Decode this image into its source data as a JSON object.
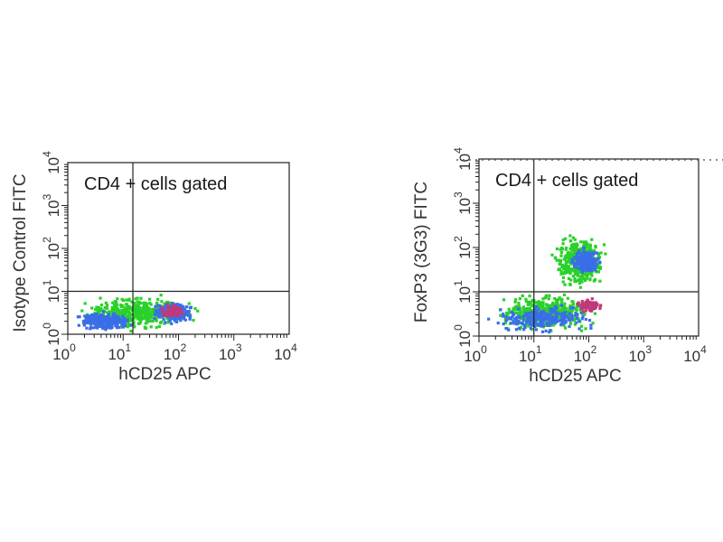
{
  "chart_data": [
    {
      "type": "scatter",
      "annotation": "CD4 + cells gated",
      "xlabel": "hCD25 APC",
      "ylabel": "Isotype Control FITC",
      "xscale": "log",
      "yscale": "log",
      "xlim": [
        1,
        10000
      ],
      "ylim": [
        1,
        10000
      ],
      "x_ticks": [
        {
          "base": "10",
          "exp": "0"
        },
        {
          "base": "10",
          "exp": "1"
        },
        {
          "base": "10",
          "exp": "2"
        },
        {
          "base": "10",
          "exp": "3"
        },
        {
          "base": "10",
          "exp": "4"
        }
      ],
      "y_ticks": [
        {
          "base": "10",
          "exp": "0"
        },
        {
          "base": "10",
          "exp": "1"
        },
        {
          "base": "10",
          "exp": "2"
        },
        {
          "base": "10",
          "exp": "3"
        },
        {
          "base": "10",
          "exp": "4"
        }
      ],
      "quadrant_gate": {
        "x": 15,
        "y": 10
      },
      "populations": [
        {
          "density": "low",
          "color": "#2bd12b",
          "x_range": [
            1,
            350
          ],
          "y_range": [
            1,
            10
          ]
        },
        {
          "density": "medium",
          "color": "#3a6ee8",
          "x_range": [
            1,
            20
          ],
          "y_range": [
            1,
            4
          ]
        },
        {
          "density": "medium",
          "color": "#3a6ee8",
          "x_range": [
            25,
            250
          ],
          "y_range": [
            1.5,
            7
          ]
        },
        {
          "density": "high",
          "color": "#c0397a",
          "x_range": [
            40,
            150
          ],
          "y_range": [
            2,
            6
          ]
        }
      ]
    },
    {
      "type": "scatter",
      "annotation": "CD4 + cells gated",
      "xlabel": "hCD25 APC",
      "ylabel": "FoxP3 (3G3) FITC",
      "xscale": "log",
      "yscale": "log",
      "xlim": [
        1,
        10000
      ],
      "ylim": [
        1,
        10000
      ],
      "x_ticks": [
        {
          "base": "10",
          "exp": "0"
        },
        {
          "base": "10",
          "exp": "1"
        },
        {
          "base": "10",
          "exp": "2"
        },
        {
          "base": "10",
          "exp": "3"
        },
        {
          "base": "10",
          "exp": "4"
        }
      ],
      "y_ticks": [
        {
          "base": "10",
          "exp": "0"
        },
        {
          "base": "10",
          "exp": "1"
        },
        {
          "base": "10",
          "exp": "2"
        },
        {
          "base": "10",
          "exp": "3"
        },
        {
          "base": "10",
          "exp": "4"
        }
      ],
      "quadrant_gate": {
        "x": 10,
        "y": 10
      },
      "populations": [
        {
          "density": "low",
          "color": "#2bd12b",
          "x_range": [
            1,
            300
          ],
          "y_range": [
            1,
            12
          ]
        },
        {
          "density": "low",
          "color": "#2bd12b",
          "x_range": [
            15,
            300
          ],
          "y_range": [
            8,
            300
          ]
        },
        {
          "density": "medium",
          "color": "#3a6ee8",
          "x_range": [
            1,
            250
          ],
          "y_range": [
            1,
            6
          ]
        },
        {
          "density": "medium",
          "color": "#3a6ee8",
          "x_range": [
            40,
            200
          ],
          "y_range": [
            20,
            120
          ]
        },
        {
          "density": "high",
          "color": "#c0397a",
          "x_range": [
            50,
            200
          ],
          "y_range": [
            3,
            8
          ]
        }
      ]
    }
  ]
}
